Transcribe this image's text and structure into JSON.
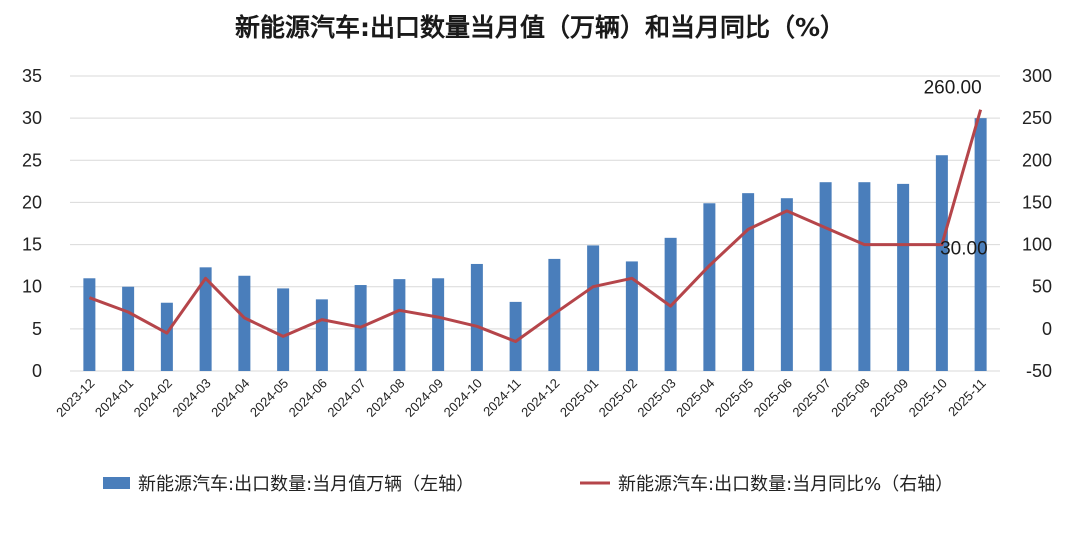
{
  "chart_data": {
    "type": "bar",
    "title": "新能源汽车:出口数量当月值（万辆）和当月同比（%）",
    "categories": [
      "2023-12",
      "2024-01",
      "2024-02",
      "2024-03",
      "2024-04",
      "2024-05",
      "2024-06",
      "2024-07",
      "2024-08",
      "2024-09",
      "2024-10",
      "2024-11",
      "2024-12",
      "2025-01",
      "2025-02",
      "2025-03",
      "2025-04",
      "2025-05",
      "2025-06",
      "2025-07",
      "2025-08",
      "2025-09",
      "2025-10",
      "2025-11"
    ],
    "series": [
      {
        "name": "新能源汽车:出口数量:当月值万辆（左轴）",
        "type": "bar",
        "axis": "left",
        "color": "#4a7ebb",
        "values": [
          11.0,
          10.0,
          8.1,
          12.3,
          11.3,
          9.8,
          8.5,
          10.2,
          10.9,
          11.0,
          12.7,
          8.2,
          13.3,
          14.9,
          13.0,
          15.8,
          19.9,
          21.1,
          20.5,
          22.4,
          22.4,
          22.2,
          25.6,
          30.0
        ]
      },
      {
        "name": "新能源汽车:出口数量:当月同比%（右轴）",
        "type": "line",
        "axis": "right",
        "color": "#b5454a",
        "values": [
          37,
          20,
          -5,
          60,
          13,
          -9,
          11,
          2,
          22,
          14,
          3,
          -15,
          18,
          50,
          60,
          27,
          75,
          118,
          140,
          120,
          100,
          100,
          100,
          260
        ]
      }
    ],
    "left_axis": {
      "ylim": [
        0,
        35
      ],
      "ticks": [
        "0",
        "5",
        "10",
        "15",
        "20",
        "25",
        "30",
        "35"
      ]
    },
    "right_axis": {
      "ylim": [
        -50,
        300
      ],
      "ticks": [
        "-50",
        "0",
        "50",
        "100",
        "150",
        "200",
        "250",
        "300"
      ]
    },
    "annotations": [
      {
        "text": "260.00",
        "series": 1,
        "index": 23
      },
      {
        "text": "30.00",
        "series": 1,
        "index": 22
      }
    ],
    "grid": true,
    "legend": "bottom"
  }
}
